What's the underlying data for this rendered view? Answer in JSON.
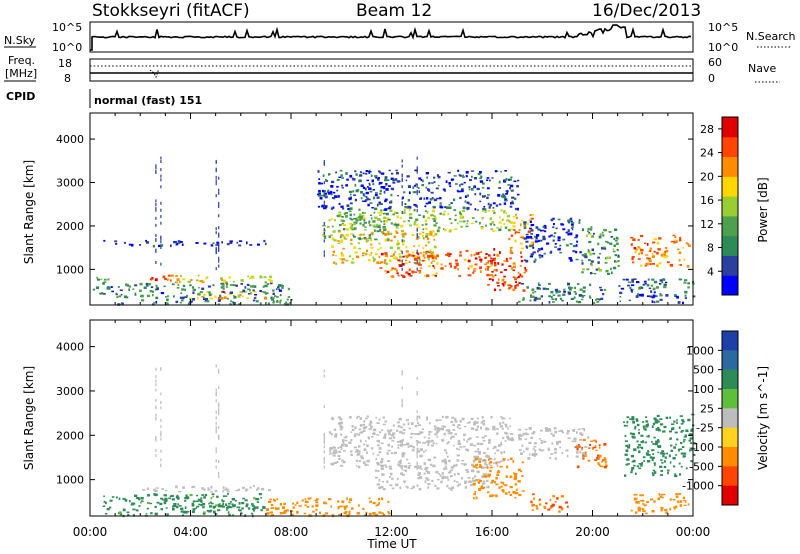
{
  "header": {
    "station": "Stokkseyri (fitACF)",
    "beam": "Beam 12",
    "date": "16/Dec/2013"
  },
  "noise_panel": {
    "left_label": "N.Sky",
    "left_ticks": [
      "10^5",
      "10^0"
    ],
    "right_ticks": [
      "10^5",
      "10^0"
    ],
    "right_label": "N.Search"
  },
  "freq_panel": {
    "left_label_line1": "Freq.",
    "left_label_line2": "[MHz]",
    "left_ticks": [
      "18",
      "8"
    ],
    "right_ticks": [
      "60",
      "0"
    ],
    "right_label": "Nave"
  },
  "cpid_panel": {
    "label": "CPID",
    "mode": "normal (fast) 151"
  },
  "x_axis": {
    "label": "Time UT",
    "ticks": [
      "00:00",
      "04:00",
      "08:00",
      "12:00",
      "16:00",
      "20:00",
      "00:00"
    ]
  },
  "colors": {
    "power_scale": [
      "#0000ff",
      "#2a3f9e",
      "#2e8b57",
      "#4ea04e",
      "#9acd32",
      "#ffd700",
      "#ff8c00",
      "#ff4500",
      "#e00000"
    ],
    "velocity_scale": [
      "#1f3fa8",
      "#2b6aa0",
      "#2e8b57",
      "#5fbf3a",
      "#bdbdbd",
      "#ffd21f",
      "#ff8c00",
      "#ff4500",
      "#e00000"
    ]
  },
  "chart_data": [
    {
      "type": "heatmap",
      "title": "",
      "xlabel": "",
      "ylabel": "Slant Range [km]",
      "xlim": [
        "00:00",
        "24:00"
      ],
      "ylim": [
        180,
        4600
      ],
      "yticks": [
        1000,
        2000,
        3000,
        4000
      ],
      "colorbar_label": "Power [dB]",
      "colorbar_ticks": [
        4,
        8,
        12,
        16,
        20,
        24,
        28
      ],
      "colorbar_range": [
        0,
        30
      ],
      "regions": [
        {
          "t_start": 0.0,
          "t_end": 1.0,
          "r_start": 450,
          "r_end": 650,
          "level": 6
        },
        {
          "t_start": 0.0,
          "t_end": 1.0,
          "r_start": 700,
          "r_end": 850,
          "level": 10
        },
        {
          "t_start": 2.0,
          "t_end": 3.8,
          "r_start": 760,
          "r_end": 880,
          "level": 24
        },
        {
          "t_start": 3.2,
          "t_end": 7.2,
          "r_start": 720,
          "r_end": 900,
          "level": 18
        },
        {
          "t_start": 3.8,
          "t_end": 7.0,
          "r_start": 330,
          "r_end": 520,
          "level": 20
        },
        {
          "t_start": 1.0,
          "t_end": 8.0,
          "r_start": 200,
          "r_end": 700,
          "level": 8
        },
        {
          "t_start": 0.5,
          "t_end": 7.0,
          "r_start": 1560,
          "r_end": 1680,
          "level": 3
        },
        {
          "t_start": 9.2,
          "t_end": 11.8,
          "r_start": 1700,
          "r_end": 2350,
          "level": 12
        },
        {
          "t_start": 9.6,
          "t_end": 13.8,
          "r_start": 1150,
          "r_end": 1900,
          "level": 18
        },
        {
          "t_start": 11.5,
          "t_end": 16.2,
          "r_start": 850,
          "r_end": 1450,
          "level": 24
        },
        {
          "t_start": 10.0,
          "t_end": 16.8,
          "r_start": 1900,
          "r_end": 2400,
          "level": 14
        },
        {
          "t_start": 15.8,
          "t_end": 17.3,
          "r_start": 500,
          "r_end": 1500,
          "level": 26
        },
        {
          "t_start": 16.6,
          "t_end": 17.6,
          "r_start": 1500,
          "r_end": 2300,
          "level": 22
        },
        {
          "t_start": 9.0,
          "t_end": 17.0,
          "r_start": 2400,
          "r_end": 3300,
          "level": 5
        },
        {
          "t_start": 17.2,
          "t_end": 19.5,
          "r_start": 1200,
          "r_end": 2200,
          "level": 4
        },
        {
          "t_start": 17.0,
          "t_end": 20.5,
          "r_start": 250,
          "r_end": 700,
          "level": 8
        },
        {
          "t_start": 19.5,
          "t_end": 21.0,
          "r_start": 900,
          "r_end": 2000,
          "level": 10
        },
        {
          "t_start": 21.5,
          "t_end": 23.8,
          "r_start": 1100,
          "r_end": 1800,
          "level": 22
        },
        {
          "t_start": 21.0,
          "t_end": 24.0,
          "r_start": 250,
          "r_end": 800,
          "level": 6
        }
      ]
    },
    {
      "type": "heatmap",
      "title": "",
      "xlabel": "Time UT",
      "ylabel": "Slant Range [km]",
      "xlim": [
        "00:00",
        "24:00"
      ],
      "ylim": [
        180,
        4600
      ],
      "yticks": [
        1000,
        2000,
        3000,
        4000
      ],
      "colorbar_label": "Velocity [m s^-1]",
      "colorbar_ticks": [
        1000,
        500,
        100,
        25,
        -25,
        -100,
        -500,
        -1000
      ],
      "colorbar_range": [
        -1200,
        1200
      ],
      "regions": [
        {
          "t_start": 2.0,
          "t_end": 7.2,
          "r_start": 740,
          "r_end": 880,
          "level": 0
        },
        {
          "t_start": 0.5,
          "t_end": 7.0,
          "r_start": 200,
          "r_end": 700,
          "level": 150
        },
        {
          "t_start": 3.8,
          "t_end": 6.5,
          "r_start": 300,
          "r_end": 520,
          "level": 300
        },
        {
          "t_start": 7.0,
          "t_end": 12.0,
          "r_start": 200,
          "r_end": 600,
          "level": -300
        },
        {
          "t_start": 9.5,
          "t_end": 16.8,
          "r_start": 1300,
          "r_end": 2450,
          "level": 0
        },
        {
          "t_start": 11.3,
          "t_end": 15.8,
          "r_start": 800,
          "r_end": 1400,
          "level": 0
        },
        {
          "t_start": 15.2,
          "t_end": 17.2,
          "r_start": 600,
          "r_end": 1500,
          "level": -300
        },
        {
          "t_start": 17.5,
          "t_end": 19.0,
          "r_start": 300,
          "r_end": 700,
          "level": -500
        },
        {
          "t_start": 17.0,
          "t_end": 19.8,
          "r_start": 1500,
          "r_end": 2200,
          "level": 0
        },
        {
          "t_start": 19.3,
          "t_end": 20.5,
          "r_start": 1300,
          "r_end": 2000,
          "level": -600
        },
        {
          "t_start": 21.2,
          "t_end": 24.0,
          "r_start": 1100,
          "r_end": 2500,
          "level": 200
        },
        {
          "t_start": 21.5,
          "t_end": 23.8,
          "r_start": 250,
          "r_end": 700,
          "level": -200
        }
      ]
    }
  ]
}
